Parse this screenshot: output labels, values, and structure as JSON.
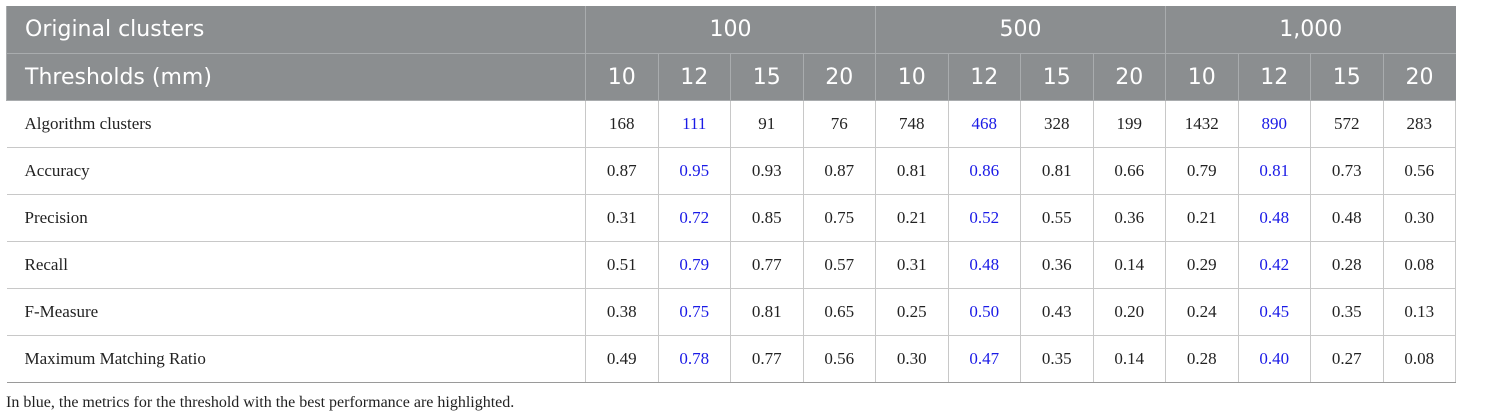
{
  "table": {
    "header": {
      "groups_label": "Original clusters",
      "groups": [
        "100",
        "500",
        "1,000"
      ],
      "thresholds_label": "Thresholds (mm)",
      "thresholds": [
        "10",
        "12",
        "15",
        "20",
        "10",
        "12",
        "15",
        "20",
        "10",
        "12",
        "15",
        "20"
      ]
    },
    "rows": [
      {
        "label": "Algorithm clusters",
        "values": [
          "168",
          "111",
          "91",
          "76",
          "748",
          "468",
          "328",
          "199",
          "1432",
          "890",
          "572",
          "283"
        ]
      },
      {
        "label": "Accuracy",
        "values": [
          "0.87",
          "0.95",
          "0.93",
          "0.87",
          "0.81",
          "0.86",
          "0.81",
          "0.66",
          "0.79",
          "0.81",
          "0.73",
          "0.56"
        ]
      },
      {
        "label": "Precision",
        "values": [
          "0.31",
          "0.72",
          "0.85",
          "0.75",
          "0.21",
          "0.52",
          "0.55",
          "0.36",
          "0.21",
          "0.48",
          "0.48",
          "0.30"
        ]
      },
      {
        "label": "Recall",
        "values": [
          "0.51",
          "0.79",
          "0.77",
          "0.57",
          "0.31",
          "0.48",
          "0.36",
          "0.14",
          "0.29",
          "0.42",
          "0.28",
          "0.08"
        ]
      },
      {
        "label": "F-Measure",
        "values": [
          "0.38",
          "0.75",
          "0.81",
          "0.65",
          "0.25",
          "0.50",
          "0.43",
          "0.20",
          "0.24",
          "0.45",
          "0.35",
          "0.13"
        ]
      },
      {
        "label": "Maximum Matching Ratio",
        "values": [
          "0.49",
          "0.78",
          "0.77",
          "0.56",
          "0.30",
          "0.47",
          "0.35",
          "0.14",
          "0.28",
          "0.40",
          "0.27",
          "0.08"
        ]
      }
    ],
    "footnote": "In blue, the metrics for the threshold with the best performance are highlighted."
  }
}
